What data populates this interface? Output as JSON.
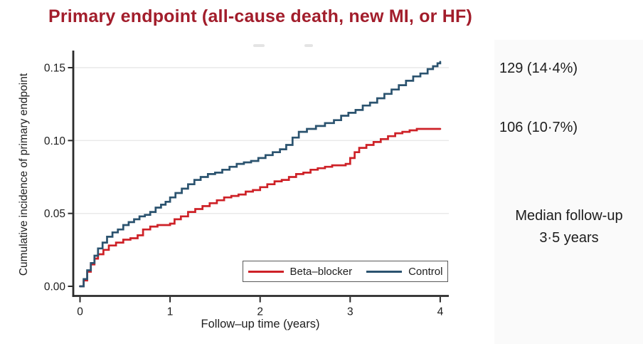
{
  "title": {
    "text": "Primary endpoint (all-cause death, new MI, or HF)",
    "color": "#a21d2b"
  },
  "chart_data": {
    "type": "line",
    "style": "step-cumulative-incidence",
    "title": "Primary endpoint (all-cause death, new MI, or HF)",
    "xlabel": "Follow–up time (years)",
    "ylabel": "Cumulative incidence of primary endpoint",
    "xlim": [
      0,
      4.1
    ],
    "ylim": [
      0,
      0.158
    ],
    "xticks": [
      0,
      1,
      2,
      3,
      4
    ],
    "ytick_values": [
      0,
      0.05,
      0.1,
      0.15
    ],
    "ytick_labels": [
      "0.00",
      "0.05",
      "0.10",
      "0.15"
    ],
    "grid": "horizontal",
    "legend_position": "inside-bottom-right",
    "series": [
      {
        "name": "Beta–blocker",
        "color": "#ce2127",
        "final_value": 0.108,
        "points": [
          [
            0,
            0
          ],
          [
            0.04,
            0.004
          ],
          [
            0.08,
            0.01
          ],
          [
            0.12,
            0.015
          ],
          [
            0.16,
            0.019
          ],
          [
            0.2,
            0.022
          ],
          [
            0.26,
            0.025
          ],
          [
            0.32,
            0.028
          ],
          [
            0.4,
            0.03
          ],
          [
            0.48,
            0.032
          ],
          [
            0.56,
            0.033
          ],
          [
            0.64,
            0.035
          ],
          [
            0.7,
            0.039
          ],
          [
            0.78,
            0.041
          ],
          [
            0.86,
            0.042
          ],
          [
            1,
            0.043
          ],
          [
            1.05,
            0.046
          ],
          [
            1.12,
            0.048
          ],
          [
            1.2,
            0.051
          ],
          [
            1.28,
            0.053
          ],
          [
            1.36,
            0.055
          ],
          [
            1.44,
            0.057
          ],
          [
            1.52,
            0.059
          ],
          [
            1.6,
            0.061
          ],
          [
            1.68,
            0.062
          ],
          [
            1.76,
            0.063
          ],
          [
            1.84,
            0.065
          ],
          [
            1.92,
            0.066
          ],
          [
            2,
            0.068
          ],
          [
            2.08,
            0.07
          ],
          [
            2.16,
            0.072
          ],
          [
            2.24,
            0.073
          ],
          [
            2.32,
            0.075
          ],
          [
            2.4,
            0.077
          ],
          [
            2.48,
            0.078
          ],
          [
            2.56,
            0.08
          ],
          [
            2.64,
            0.081
          ],
          [
            2.72,
            0.082
          ],
          [
            2.8,
            0.083
          ],
          [
            2.95,
            0.084
          ],
          [
            3,
            0.088
          ],
          [
            3.05,
            0.092
          ],
          [
            3.1,
            0.095
          ],
          [
            3.18,
            0.097
          ],
          [
            3.26,
            0.099
          ],
          [
            3.34,
            0.101
          ],
          [
            3.42,
            0.103
          ],
          [
            3.5,
            0.105
          ],
          [
            3.58,
            0.106
          ],
          [
            3.66,
            0.107
          ],
          [
            3.74,
            0.108
          ],
          [
            4,
            0.108
          ]
        ]
      },
      {
        "name": "Control",
        "color": "#2b536f",
        "final_value": 0.154,
        "points": [
          [
            0,
            0
          ],
          [
            0.04,
            0.005
          ],
          [
            0.08,
            0.011
          ],
          [
            0.12,
            0.016
          ],
          [
            0.16,
            0.021
          ],
          [
            0.2,
            0.026
          ],
          [
            0.25,
            0.03
          ],
          [
            0.3,
            0.034
          ],
          [
            0.36,
            0.037
          ],
          [
            0.42,
            0.039
          ],
          [
            0.48,
            0.042
          ],
          [
            0.54,
            0.044
          ],
          [
            0.6,
            0.046
          ],
          [
            0.66,
            0.048
          ],
          [
            0.72,
            0.049
          ],
          [
            0.78,
            0.051
          ],
          [
            0.84,
            0.054
          ],
          [
            0.9,
            0.056
          ],
          [
            0.95,
            0.058
          ],
          [
            1,
            0.061
          ],
          [
            1.06,
            0.064
          ],
          [
            1.13,
            0.067
          ],
          [
            1.2,
            0.07
          ],
          [
            1.27,
            0.073
          ],
          [
            1.34,
            0.075
          ],
          [
            1.42,
            0.077
          ],
          [
            1.5,
            0.078
          ],
          [
            1.58,
            0.08
          ],
          [
            1.66,
            0.082
          ],
          [
            1.74,
            0.084
          ],
          [
            1.82,
            0.085
          ],
          [
            1.9,
            0.086
          ],
          [
            1.98,
            0.088
          ],
          [
            2.06,
            0.09
          ],
          [
            2.14,
            0.092
          ],
          [
            2.22,
            0.094
          ],
          [
            2.29,
            0.097
          ],
          [
            2.36,
            0.102
          ],
          [
            2.43,
            0.106
          ],
          [
            2.52,
            0.108
          ],
          [
            2.62,
            0.11
          ],
          [
            2.72,
            0.112
          ],
          [
            2.82,
            0.114
          ],
          [
            2.9,
            0.117
          ],
          [
            2.98,
            0.119
          ],
          [
            3.06,
            0.121
          ],
          [
            3.14,
            0.124
          ],
          [
            3.22,
            0.126
          ],
          [
            3.3,
            0.129
          ],
          [
            3.38,
            0.132
          ],
          [
            3.46,
            0.135
          ],
          [
            3.54,
            0.138
          ],
          [
            3.62,
            0.141
          ],
          [
            3.7,
            0.144
          ],
          [
            3.78,
            0.146
          ],
          [
            3.86,
            0.149
          ],
          [
            3.92,
            0.151
          ],
          [
            3.97,
            0.153
          ],
          [
            4,
            0.154
          ]
        ]
      }
    ]
  },
  "annotations": {
    "control_events": "129 (14·4%)",
    "beta_blocker_events": "106 (10·7%)",
    "median_followup_line1": "Median follow-up",
    "median_followup_line2": "3·5 years"
  },
  "colors": {
    "title": "#a21d2b",
    "beta_blocker_line": "#ce2127",
    "control_line": "#2b536f",
    "axis": "#2b2b2b",
    "text": "#1d1d1d",
    "gridline": "#e9e9e9",
    "right_panel_bg": "#fafafa",
    "legend_border": "#5a5a5a"
  }
}
